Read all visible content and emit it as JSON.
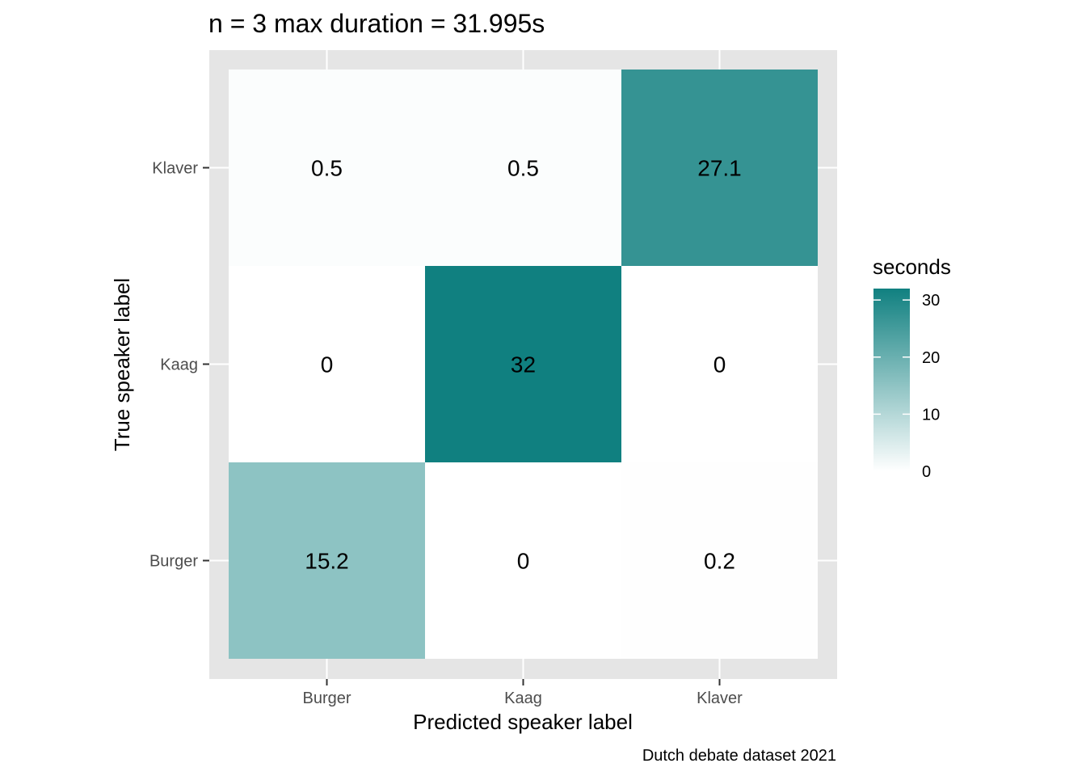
{
  "chart_data": {
    "type": "heatmap",
    "title": "n = 3 max duration = 31.995s",
    "xlabel": "Predicted speaker label",
    "ylabel": "True speaker label",
    "caption": "Dutch debate dataset 2021",
    "x_categories": [
      "Burger",
      "Kaag",
      "Klaver"
    ],
    "y_categories": [
      "Burger",
      "Kaag",
      "Klaver"
    ],
    "cells": [
      {
        "x": "Burger",
        "y": "Klaver",
        "value": 0.5,
        "label": "0.5"
      },
      {
        "x": "Kaag",
        "y": "Klaver",
        "value": 0.5,
        "label": "0.5"
      },
      {
        "x": "Klaver",
        "y": "Klaver",
        "value": 27.1,
        "label": "27.1"
      },
      {
        "x": "Burger",
        "y": "Kaag",
        "value": 0,
        "label": "0"
      },
      {
        "x": "Kaag",
        "y": "Kaag",
        "value": 32,
        "label": "32"
      },
      {
        "x": "Klaver",
        "y": "Kaag",
        "value": 0,
        "label": "0"
      },
      {
        "x": "Burger",
        "y": "Burger",
        "value": 15.2,
        "label": "15.2"
      },
      {
        "x": "Kaag",
        "y": "Burger",
        "value": 0,
        "label": "0"
      },
      {
        "x": "Klaver",
        "y": "Burger",
        "value": 0.2,
        "label": "0.2"
      }
    ],
    "legend": {
      "title": "seconds",
      "placement": "right",
      "ticks": [
        0,
        10,
        20,
        30
      ],
      "range": [
        0,
        32
      ],
      "color_low": "#ffffff",
      "color_high": "#108080"
    },
    "grid": true,
    "panel_background": "#e5e5e5"
  }
}
